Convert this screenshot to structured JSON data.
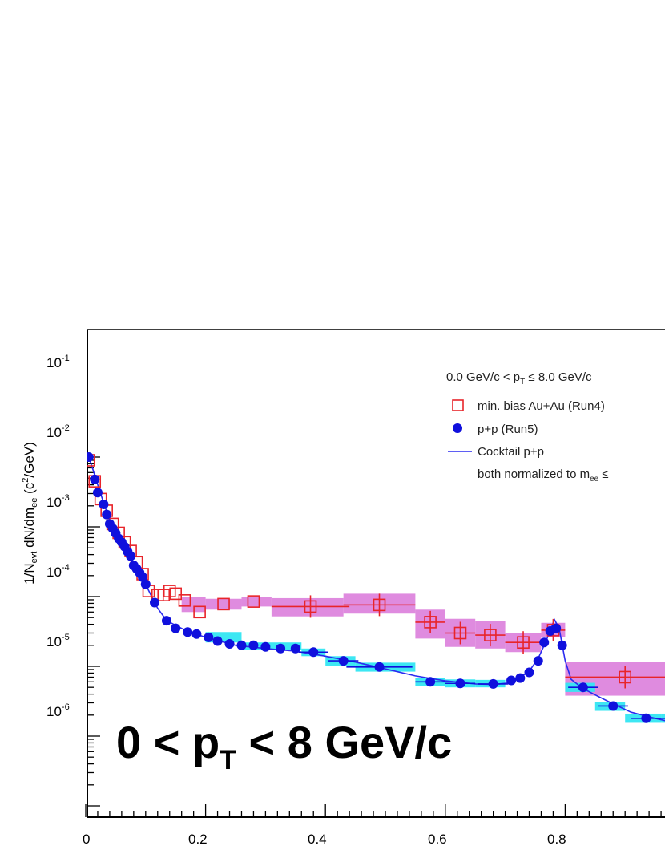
{
  "chart_data": {
    "type": "scatter",
    "yscale": "log",
    "xlim": [
      0,
      1.0
    ],
    "ylim": [
      1e-06,
      0.15
    ],
    "x_ticks": [
      "0",
      "0.2",
      "0.4",
      "0.6",
      "0.8"
    ],
    "y_tick_base": "10",
    "y_tick_exponents": [
      "-1",
      "-2",
      "-3",
      "-4",
      "-5",
      "-6"
    ],
    "ylabel": {
      "main": "1/N",
      "sub1": "evt",
      "mid": " dN/dm",
      "sub2": "ee",
      "unit_open": " (c",
      "unit_sup": "2",
      "unit_close": "/GeV)"
    },
    "big_label": {
      "pre": "0 < p",
      "sub": "T",
      "post": " < 8 GeV/c"
    },
    "legend": {
      "header": {
        "pre": "0.0 GeV/c < p",
        "sub": "T",
        "post": " ≤ 8.0 GeV/c"
      },
      "auau": "min. bias Au+Au (Run4)",
      "pp": "p+p (Run5)",
      "cocktail": "Cocktail p+p",
      "norm": {
        "pre": "both normalized to m",
        "sub": "ee",
        "post": " ≤"
      }
    },
    "colors": {
      "auau": "#e8242a",
      "auau_sys": "#dd85dd",
      "pp": "#1010dd",
      "pp_sys": "#33e6f2",
      "cocktail": "#2a2af0"
    },
    "series": [
      {
        "name": "min. bias Au+Au (Run4)",
        "marker": "open-square",
        "points": [
          {
            "x": 0.005,
            "y": 0.09
          },
          {
            "x": 0.015,
            "y": 0.045
          },
          {
            "x": 0.025,
            "y": 0.025
          },
          {
            "x": 0.035,
            "y": 0.017
          },
          {
            "x": 0.045,
            "y": 0.011
          },
          {
            "x": 0.055,
            "y": 0.0082
          },
          {
            "x": 0.065,
            "y": 0.006
          },
          {
            "x": 0.075,
            "y": 0.0045
          },
          {
            "x": 0.085,
            "y": 0.0031
          },
          {
            "x": 0.095,
            "y": 0.0021
          },
          {
            "x": 0.105,
            "y": 0.0012
          },
          {
            "x": 0.12,
            "y": 0.00105
          },
          {
            "x": 0.13,
            "y": 0.00105
          },
          {
            "x": 0.14,
            "y": 0.0012
          },
          {
            "x": 0.15,
            "y": 0.0011
          },
          {
            "x": 0.165,
            "y": 0.00088
          },
          {
            "x": 0.19,
            "y": 0.0006
          },
          {
            "x": 0.23,
            "y": 0.00078
          },
          {
            "x": 0.28,
            "y": 0.00085
          },
          {
            "x": 0.375,
            "y": 0.00072,
            "xerr": 0.065
          },
          {
            "x": 0.49,
            "y": 0.00076,
            "xerr": 0.06
          },
          {
            "x": 0.575,
            "y": 0.00043,
            "xerr": 0.025
          },
          {
            "x": 0.625,
            "y": 0.0003,
            "xerr": 0.025
          },
          {
            "x": 0.675,
            "y": 0.00028,
            "xerr": 0.025
          },
          {
            "x": 0.73,
            "y": 0.00022,
            "xerr": 0.03
          },
          {
            "x": 0.78,
            "y": 0.00033,
            "xerr": 0.02
          },
          {
            "x": 0.9,
            "y": 7e-05,
            "xerr": 0.1
          }
        ]
      },
      {
        "name": "p+p (Run5)",
        "marker": "filled-circle",
        "points": [
          {
            "x": 0.005,
            "y": 0.1
          },
          {
            "x": 0.015,
            "y": 0.048
          },
          {
            "x": 0.02,
            "y": 0.031
          },
          {
            "x": 0.03,
            "y": 0.021
          },
          {
            "x": 0.035,
            "y": 0.015
          },
          {
            "x": 0.04,
            "y": 0.011
          },
          {
            "x": 0.045,
            "y": 0.0095
          },
          {
            "x": 0.05,
            "y": 0.0081
          },
          {
            "x": 0.055,
            "y": 0.0068
          },
          {
            "x": 0.06,
            "y": 0.006
          },
          {
            "x": 0.065,
            "y": 0.0052
          },
          {
            "x": 0.07,
            "y": 0.0044
          },
          {
            "x": 0.075,
            "y": 0.0038
          },
          {
            "x": 0.08,
            "y": 0.0028
          },
          {
            "x": 0.085,
            "y": 0.0025
          },
          {
            "x": 0.09,
            "y": 0.0022
          },
          {
            "x": 0.095,
            "y": 0.0019
          },
          {
            "x": 0.1,
            "y": 0.0015
          },
          {
            "x": 0.115,
            "y": 0.00082
          },
          {
            "x": 0.135,
            "y": 0.00045
          },
          {
            "x": 0.15,
            "y": 0.00035
          },
          {
            "x": 0.17,
            "y": 0.00031
          },
          {
            "x": 0.185,
            "y": 0.00029
          },
          {
            "x": 0.205,
            "y": 0.00026
          },
          {
            "x": 0.22,
            "y": 0.00023
          },
          {
            "x": 0.24,
            "y": 0.00021
          },
          {
            "x": 0.26,
            "y": 0.0002
          },
          {
            "x": 0.28,
            "y": 0.0002
          },
          {
            "x": 0.3,
            "y": 0.00019
          },
          {
            "x": 0.325,
            "y": 0.00018
          },
          {
            "x": 0.35,
            "y": 0.00018
          },
          {
            "x": 0.38,
            "y": 0.00016,
            "xerr": 0.025
          },
          {
            "x": 0.43,
            "y": 0.00012,
            "xerr": 0.025
          },
          {
            "x": 0.49,
            "y": 9.8e-05,
            "xerr": 0.055
          },
          {
            "x": 0.575,
            "y": 6e-05,
            "xerr": 0.025
          },
          {
            "x": 0.625,
            "y": 5.7e-05,
            "xerr": 0.025
          },
          {
            "x": 0.68,
            "y": 5.6e-05,
            "xerr": 0.025
          },
          {
            "x": 0.71,
            "y": 6.3e-05
          },
          {
            "x": 0.725,
            "y": 6.8e-05
          },
          {
            "x": 0.74,
            "y": 8.2e-05
          },
          {
            "x": 0.755,
            "y": 0.00012
          },
          {
            "x": 0.765,
            "y": 0.00022
          },
          {
            "x": 0.775,
            "y": 0.00032
          },
          {
            "x": 0.785,
            "y": 0.00035
          },
          {
            "x": 0.795,
            "y": 0.0002
          },
          {
            "x": 0.83,
            "y": 5e-05,
            "xerr": 0.025
          },
          {
            "x": 0.88,
            "y": 2.7e-05,
            "xerr": 0.025
          },
          {
            "x": 0.935,
            "y": 1.8e-05,
            "xerr": 0.025
          },
          {
            "x": 0.975,
            "y": 1.8e-05,
            "xerr": 0.015
          }
        ]
      },
      {
        "name": "Cocktail p+p",
        "marker": "line",
        "points": [
          {
            "x": 0.003,
            "y": 0.11
          },
          {
            "x": 0.01,
            "y": 0.075
          },
          {
            "x": 0.02,
            "y": 0.04
          },
          {
            "x": 0.03,
            "y": 0.022
          },
          {
            "x": 0.04,
            "y": 0.0125
          },
          {
            "x": 0.05,
            "y": 0.0082
          },
          {
            "x": 0.06,
            "y": 0.0058
          },
          {
            "x": 0.07,
            "y": 0.0043
          },
          {
            "x": 0.08,
            "y": 0.0031
          },
          {
            "x": 0.09,
            "y": 0.0022
          },
          {
            "x": 0.1,
            "y": 0.0015
          },
          {
            "x": 0.11,
            "y": 0.001
          },
          {
            "x": 0.12,
            "y": 0.00068
          },
          {
            "x": 0.13,
            "y": 0.00052
          },
          {
            "x": 0.14,
            "y": 0.00043
          },
          {
            "x": 0.16,
            "y": 0.00035
          },
          {
            "x": 0.18,
            "y": 0.0003
          },
          {
            "x": 0.2,
            "y": 0.00026
          },
          {
            "x": 0.25,
            "y": 0.0002
          },
          {
            "x": 0.3,
            "y": 0.00018
          },
          {
            "x": 0.35,
            "y": 0.000165
          },
          {
            "x": 0.4,
            "y": 0.00014
          },
          {
            "x": 0.45,
            "y": 0.000115
          },
          {
            "x": 0.5,
            "y": 9.2e-05
          },
          {
            "x": 0.55,
            "y": 7.3e-05
          },
          {
            "x": 0.6,
            "y": 6.2e-05
          },
          {
            "x": 0.65,
            "y": 5.6e-05
          },
          {
            "x": 0.68,
            "y": 5.5e-05
          },
          {
            "x": 0.7,
            "y": 5.7e-05
          },
          {
            "x": 0.72,
            "y": 6.5e-05
          },
          {
            "x": 0.74,
            "y": 8.5e-05
          },
          {
            "x": 0.755,
            "y": 0.00013
          },
          {
            "x": 0.765,
            "y": 0.0002
          },
          {
            "x": 0.775,
            "y": 0.00032
          },
          {
            "x": 0.782,
            "y": 0.00047
          },
          {
            "x": 0.79,
            "y": 0.00035
          },
          {
            "x": 0.8,
            "y": 0.00012
          },
          {
            "x": 0.81,
            "y": 6.5e-05
          },
          {
            "x": 0.83,
            "y": 4.8e-05
          },
          {
            "x": 0.85,
            "y": 3.9e-05
          },
          {
            "x": 0.88,
            "y": 2.9e-05
          },
          {
            "x": 0.91,
            "y": 2.2e-05
          },
          {
            "x": 0.95,
            "y": 1.8e-05
          },
          {
            "x": 0.99,
            "y": 1.5e-05
          }
        ]
      }
    ],
    "systematics": [
      {
        "series": "min. bias Au+Au (Run4)",
        "x0": 0.16,
        "x1": 0.2,
        "ylo": 0.0006,
        "yhi": 0.00098
      },
      {
        "series": "min. bias Au+Au (Run4)",
        "x0": 0.2,
        "x1": 0.26,
        "ylo": 0.00065,
        "yhi": 0.00093
      },
      {
        "series": "min. bias Au+Au (Run4)",
        "x0": 0.26,
        "x1": 0.31,
        "ylo": 0.00072,
        "yhi": 0.001
      },
      {
        "series": "min. bias Au+Au (Run4)",
        "x0": 0.31,
        "x1": 0.43,
        "ylo": 0.00052,
        "yhi": 0.00095
      },
      {
        "series": "min. bias Au+Au (Run4)",
        "x0": 0.43,
        "x1": 0.55,
        "ylo": 0.00057,
        "yhi": 0.0011
      },
      {
        "series": "min. bias Au+Au (Run4)",
        "x0": 0.55,
        "x1": 0.6,
        "ylo": 0.00025,
        "yhi": 0.00065
      },
      {
        "series": "min. bias Au+Au (Run4)",
        "x0": 0.6,
        "x1": 0.65,
        "ylo": 0.00019,
        "yhi": 0.00048
      },
      {
        "series": "min. bias Au+Au (Run4)",
        "x0": 0.65,
        "x1": 0.7,
        "ylo": 0.00018,
        "yhi": 0.00045
      },
      {
        "series": "min. bias Au+Au (Run4)",
        "x0": 0.7,
        "x1": 0.76,
        "ylo": 0.00016,
        "yhi": 0.0003
      },
      {
        "series": "min. bias Au+Au (Run4)",
        "x0": 0.76,
        "x1": 0.8,
        "ylo": 0.00026,
        "yhi": 0.00042
      },
      {
        "series": "min. bias Au+Au (Run4)",
        "x0": 0.8,
        "x1": 1.0,
        "ylo": 3.8e-05,
        "yhi": 0.000115
      },
      {
        "series": "p+p (Run5)",
        "x0": 0.2,
        "x1": 0.26,
        "ylo": 0.00022,
        "yhi": 0.00031
      },
      {
        "series": "p+p (Run5)",
        "x0": 0.26,
        "x1": 0.36,
        "ylo": 0.00017,
        "yhi": 0.00022
      },
      {
        "series": "p+p (Run5)",
        "x0": 0.36,
        "x1": 0.4,
        "ylo": 0.00014,
        "yhi": 0.00018
      },
      {
        "series": "p+p (Run5)",
        "x0": 0.4,
        "x1": 0.45,
        "ylo": 0.0001,
        "yhi": 0.00014
      },
      {
        "series": "p+p (Run5)",
        "x0": 0.45,
        "x1": 0.55,
        "ylo": 8.4e-05,
        "yhi": 0.000113
      },
      {
        "series": "p+p (Run5)",
        "x0": 0.55,
        "x1": 0.6,
        "ylo": 5.2e-05,
        "yhi": 6.9e-05
      },
      {
        "series": "p+p (Run5)",
        "x0": 0.6,
        "x1": 0.65,
        "ylo": 5e-05,
        "yhi": 6.5e-05
      },
      {
        "series": "p+p (Run5)",
        "x0": 0.65,
        "x1": 0.7,
        "ylo": 5e-05,
        "yhi": 6.4e-05
      },
      {
        "series": "p+p (Run5)",
        "x0": 0.8,
        "x1": 0.85,
        "ylo": 4.3e-05,
        "yhi": 5.8e-05
      },
      {
        "series": "p+p (Run5)",
        "x0": 0.85,
        "x1": 0.9,
        "ylo": 2.3e-05,
        "yhi": 3.1e-05
      },
      {
        "series": "p+p (Run5)",
        "x0": 0.9,
        "x1": 0.96,
        "ylo": 1.55e-05,
        "yhi": 2.1e-05
      },
      {
        "series": "p+p (Run5)",
        "x0": 0.96,
        "x1": 1.0,
        "ylo": 1.55e-05,
        "yhi": 2.1e-05
      }
    ]
  }
}
